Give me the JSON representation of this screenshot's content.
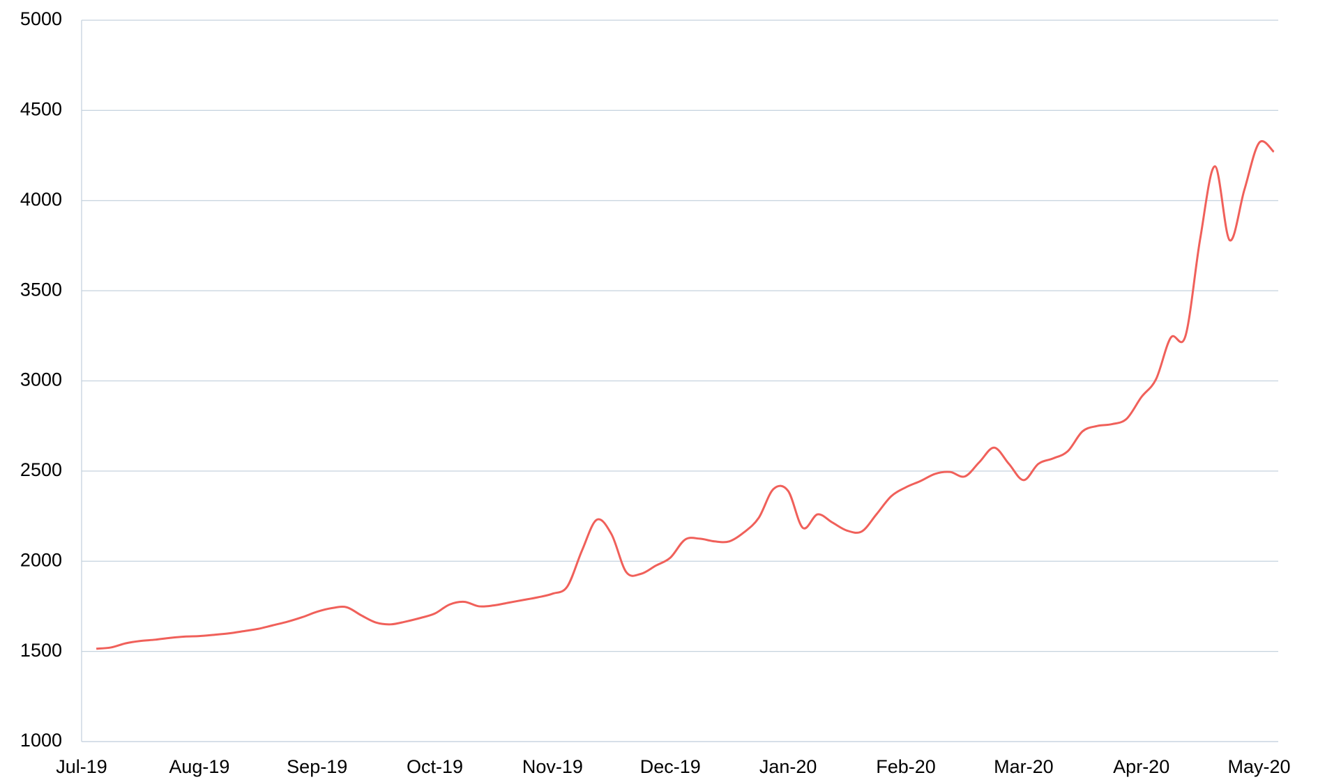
{
  "chart_data": {
    "type": "line",
    "categories": [
      "Jul-19",
      null,
      null,
      null,
      null,
      null,
      null,
      null,
      "Aug-19",
      null,
      null,
      null,
      null,
      null,
      null,
      null,
      "Sep-19",
      null,
      null,
      null,
      null,
      null,
      null,
      null,
      "Oct-19",
      null,
      null,
      null,
      null,
      null,
      null,
      null,
      "Nov-19",
      null,
      null,
      null,
      null,
      null,
      null,
      null,
      "Dec-19",
      null,
      null,
      null,
      null,
      null,
      null,
      null,
      "Jan-20",
      null,
      null,
      null,
      null,
      null,
      null,
      null,
      "Feb-20",
      null,
      null,
      null,
      null,
      null,
      null,
      null,
      "Mar-20",
      null,
      null,
      null,
      null,
      null,
      null,
      null,
      "Apr-20",
      null,
      null,
      null,
      null,
      null,
      null,
      null,
      "May-20",
      null
    ],
    "series": [
      {
        "color": "#f0605a",
        "values": [
          null,
          1515,
          1522,
          1545,
          1558,
          1565,
          1575,
          1582,
          1585,
          1592,
          1600,
          1612,
          1625,
          1645,
          1665,
          1690,
          1720,
          1740,
          1745,
          1700,
          1660,
          1650,
          1665,
          1685,
          1710,
          1760,
          1775,
          1750,
          1755,
          1770,
          1785,
          1800,
          1820,
          1860,
          2060,
          2230,
          2150,
          1940,
          1930,
          1975,
          2020,
          2120,
          2125,
          2110,
          2110,
          2160,
          2240,
          2400,
          2390,
          2185,
          2260,
          2215,
          2170,
          2165,
          2260,
          2360,
          2410,
          2445,
          2485,
          2495,
          2470,
          2550,
          2630,
          2540,
          2450,
          2540,
          2570,
          2610,
          2720,
          2750,
          2760,
          2790,
          2910,
          3010,
          3240,
          3250,
          3790,
          4190,
          3780,
          4060,
          4320,
          4270
        ]
      }
    ],
    "ylim": [
      1000,
      5000
    ],
    "yticks": [
      1000,
      1500,
      2000,
      2500,
      3000,
      3500,
      4000,
      4500,
      5000
    ],
    "grid": true
  }
}
